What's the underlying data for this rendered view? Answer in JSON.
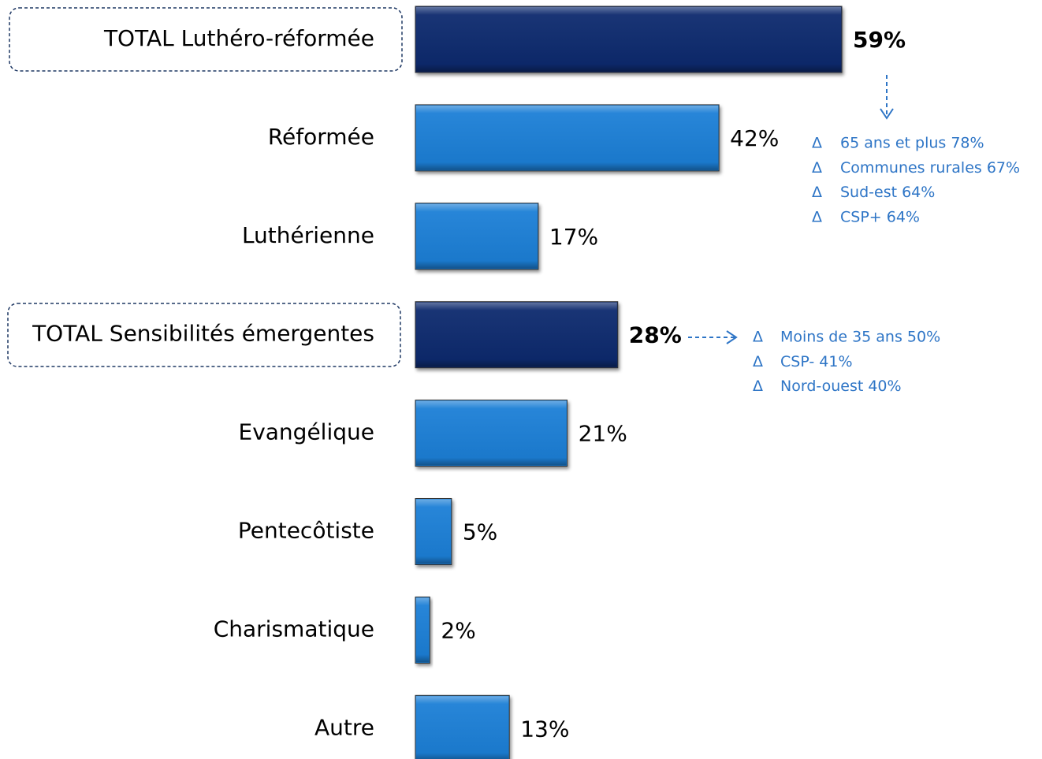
{
  "chart_data": {
    "type": "bar",
    "orientation": "horizontal",
    "categories": [
      "TOTAL Luthéro-réformée",
      "Réformée",
      "Luthérienne",
      "TOTAL Sensibilités émergentes",
      "Evangélique",
      "Pentecôtiste",
      "Charismatique",
      "Autre"
    ],
    "values": [
      59,
      42,
      17,
      28,
      21,
      5,
      2,
      13
    ],
    "value_labels": [
      "59%",
      "42%",
      "17%",
      "28%",
      "21%",
      "5%",
      "2%",
      "13%"
    ],
    "colors": [
      "#0d2c6e",
      "#1b7fd6",
      "#1b7fd6",
      "#0d2c6e",
      "#1b7fd6",
      "#1b7fd6",
      "#1b7fd6",
      "#1b7fd6"
    ],
    "emphasis": [
      true,
      false,
      false,
      true,
      false,
      false,
      false,
      false
    ],
    "annotations": [
      {
        "bullet": "Δ",
        "items": [
          "65 ans et plus 78%",
          "Communes rurales 67%",
          "Sud-est 64%",
          "CSP+ 64%"
        ]
      },
      {
        "bullet": "Δ",
        "items": [
          "Moins de 35 ans  50%",
          "CSP- 41%",
          "Nord-ouest 40%"
        ]
      }
    ]
  }
}
